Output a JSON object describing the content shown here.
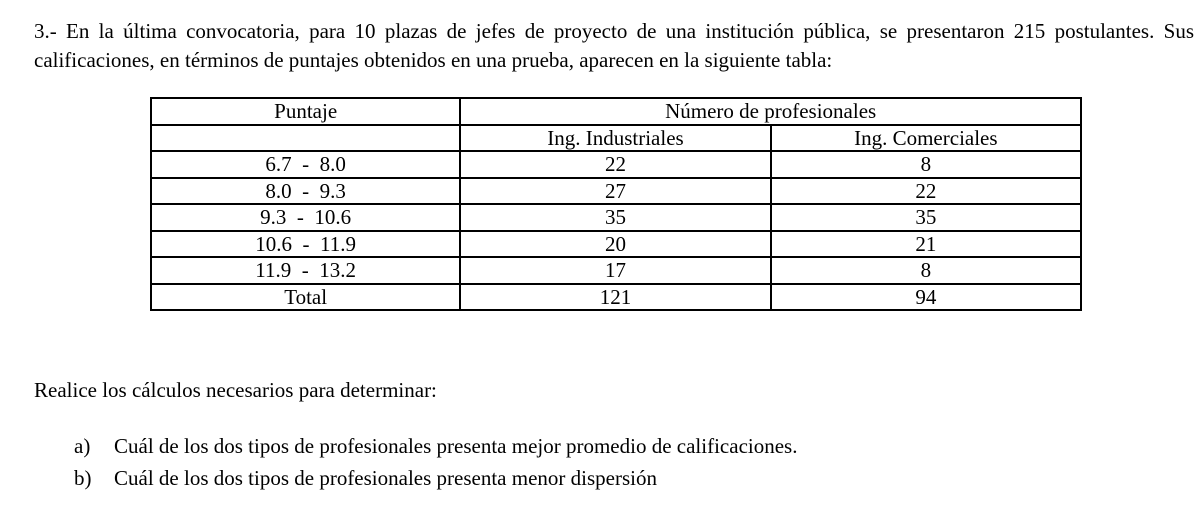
{
  "problem": {
    "text": "3.- En la última convocatoria, para 10 plazas de jefes de proyecto de una institución pública, se presentaron 215 postulantes. Sus calificaciones, en términos de puntajes obtenidos en una prueba, aparecen en la siguiente tabla:"
  },
  "table": {
    "header_puntaje": "Puntaje",
    "header_group": "Número de profesionales",
    "sub_headers": [
      "Ing. Industriales",
      "Ing. Comerciales"
    ],
    "rows": [
      {
        "range": "6.7  -  8.0",
        "ind": "22",
        "com": "8"
      },
      {
        "range": "8.0  -  9.3",
        "ind": "27",
        "com": "22"
      },
      {
        "range": "9.3  -  10.6",
        "ind": "35",
        "com": "35"
      },
      {
        "range": "10.6  -  11.9",
        "ind": "20",
        "com": "21"
      },
      {
        "range": "11.9  -  13.2",
        "ind": "17",
        "com": "8"
      }
    ],
    "total": {
      "label": "Total",
      "ind": "121",
      "com": "94"
    }
  },
  "instruction": "Realice los cálculos necesarios para determinar:",
  "questions": [
    {
      "label": "a)",
      "text": "Cuál de los dos tipos de profesionales presenta mejor promedio de calificaciones."
    },
    {
      "label": "b)",
      "text": "Cuál de los dos tipos de profesionales presenta menor dispersión"
    }
  ]
}
